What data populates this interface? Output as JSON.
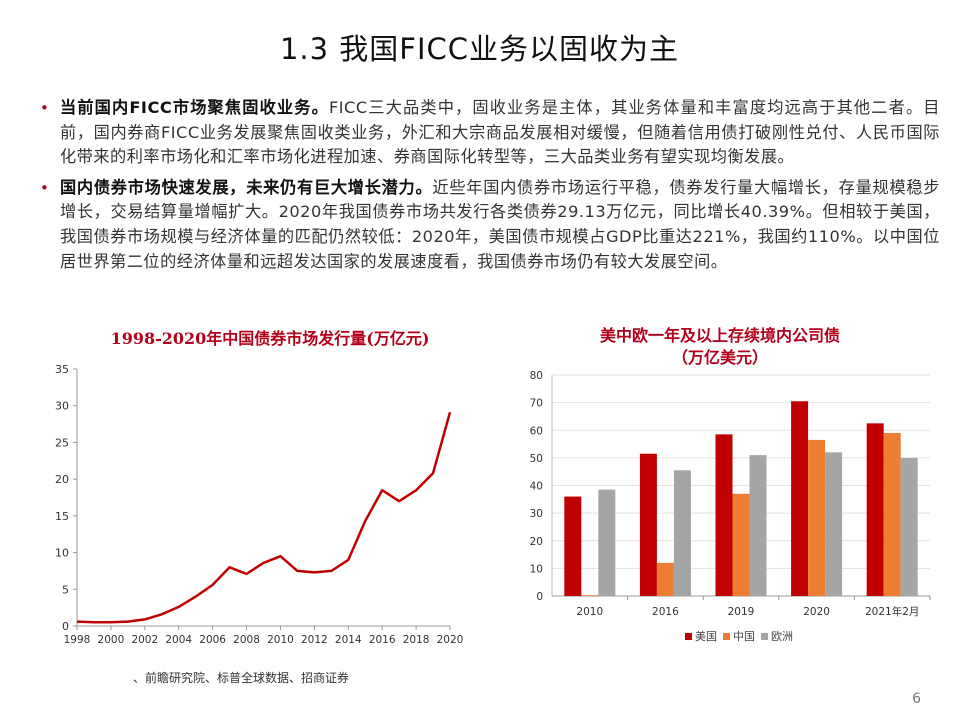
{
  "title": "1.3 我国FICC业务以固收为主",
  "bullets": [
    {
      "bold": "当前国内FICC市场聚焦固收业务。",
      "text": "FICC三大品类中，固收业务是主体，其业务体量和丰富度均远高于其他二者。目前，国内券商FICC业务发展聚焦固收类业务，外汇和大宗商品发展相对缓慢，但随着信用债打破刚性兑付、人民币国际化带来的利率市场化和汇率市场化进程加速、券商国际化转型等，三大品类业务有望实现均衡发展。"
    },
    {
      "bold": "国内债券市场快速发展，未来仍有巨大增长潜力。",
      "text": "近些年国内债券市场运行平稳，债券发行量大幅增长，存量规模稳步增长，交易结算量增幅扩大。2020年我国债券市场共发行各类债券29.13万亿元，同比增长40.39%。但相较于美国，我国债券市场规模与经济体量的匹配仍然较低：2020年，美国债市规模占GDP比重达221%，我国约110%。以中国位居世界第二位的经济体量和远超发达国家的发展速度看，我国债券市场仍有较大发展空间。"
    }
  ],
  "source": "、前瞻研究院、标普全球数据、招商证券",
  "page_number": "6",
  "colors": {
    "red": "#c00000",
    "orange": "#ed7d31",
    "gray": "#a5a5a5",
    "title_red": "#b3001b"
  },
  "chart_data": [
    {
      "type": "line",
      "title": "1998-2020年中国债券市场发行量(万亿元)",
      "x": [
        1998,
        1999,
        2000,
        2001,
        2002,
        2003,
        2004,
        2005,
        2006,
        2007,
        2008,
        2009,
        2010,
        2011,
        2012,
        2013,
        2014,
        2015,
        2016,
        2017,
        2018,
        2019,
        2020
      ],
      "y": [
        0.6,
        0.5,
        0.5,
        0.6,
        0.9,
        1.6,
        2.6,
        4.0,
        5.6,
        8.0,
        7.1,
        8.6,
        9.5,
        7.5,
        7.3,
        7.5,
        9.0,
        14.3,
        18.5,
        17.0,
        18.5,
        20.8,
        29.1
      ],
      "xticks": [
        "1998",
        "2000",
        "2002",
        "2004",
        "2006",
        "2008",
        "2010",
        "2012",
        "2014",
        "2016",
        "2018",
        "2020"
      ],
      "yticks": [
        "0",
        "5",
        "10",
        "15",
        "20",
        "25",
        "30",
        "35"
      ],
      "ylim": [
        0,
        35
      ],
      "color": "#c00000"
    },
    {
      "type": "bar",
      "title_line1": "美中欧一年及以上存续境内公司债",
      "title_line2": "（万亿美元）",
      "categories": [
        "2010",
        "2016",
        "2019",
        "2020",
        "2021年2月"
      ],
      "series": [
        {
          "name": "美国",
          "values": [
            36,
            51.5,
            58.5,
            70.5,
            62.5
          ],
          "color": "#c00000"
        },
        {
          "name": "中国",
          "values": [
            0.3,
            12,
            37,
            56.5,
            59
          ],
          "color": "#ed7d31"
        },
        {
          "name": "欧洲",
          "values": [
            38.5,
            45.5,
            51,
            52,
            50
          ],
          "color": "#a5a5a5"
        }
      ],
      "yticks": [
        "0",
        "10",
        "20",
        "30",
        "40",
        "50",
        "60",
        "70",
        "80"
      ],
      "ylim": [
        0,
        80
      ],
      "legend": "bottom"
    }
  ]
}
